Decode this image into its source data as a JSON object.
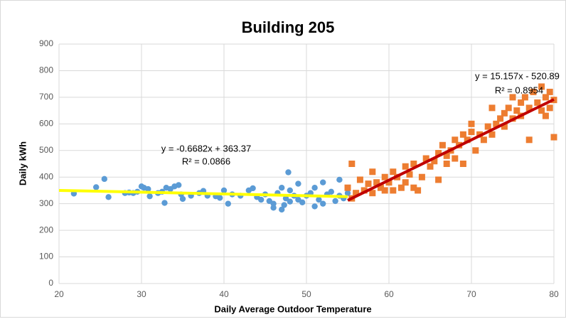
{
  "chart_data": {
    "type": "scatter",
    "title": "Building 205",
    "x_label": "Daily Average Outdoor Temperature",
    "y_label": "Daily kWh",
    "xlim": [
      20,
      80
    ],
    "xticks": [
      20,
      30,
      40,
      50,
      60,
      70,
      80
    ],
    "ylim": [
      0,
      900
    ],
    "yticks": [
      0,
      100,
      200,
      300,
      400,
      500,
      600,
      700,
      800,
      900
    ],
    "grid": true,
    "series": [
      {
        "color": "#5b9bd5",
        "marker": "circle",
        "x": [
          21.8,
          24.5,
          25.5,
          26,
          28,
          28.5,
          29,
          29.5,
          30,
          30.3,
          30.8,
          31,
          32,
          32.5,
          32.8,
          33,
          33.5,
          34,
          34.5,
          34.8,
          35,
          36,
          37,
          37.5,
          38,
          39,
          39.5,
          40,
          40.5,
          41,
          42,
          43,
          43.5,
          44,
          44.5,
          45,
          45.5,
          46,
          46,
          46.5,
          47,
          47,
          47.3,
          47.5,
          47.8,
          48,
          48,
          48.5,
          49,
          49,
          49.5,
          50,
          50.5,
          51,
          51,
          51.5,
          52,
          52,
          52.5,
          53,
          53.5,
          54,
          54,
          54.5,
          55
        ],
        "values": [
          338,
          362,
          393,
          325,
          340,
          342,
          340,
          345,
          365,
          360,
          355,
          328,
          340,
          345,
          303,
          360,
          355,
          365,
          370,
          335,
          318,
          330,
          340,
          348,
          330,
          328,
          322,
          350,
          300,
          335,
          330,
          350,
          358,
          325,
          315,
          335,
          310,
          300,
          285,
          340,
          360,
          278,
          295,
          320,
          418,
          308,
          350,
          330,
          375,
          315,
          305,
          330,
          340,
          290,
          360,
          315,
          380,
          300,
          335,
          345,
          310,
          390,
          330,
          320,
          340
        ]
      },
      {
        "color": "#ed7d31",
        "marker": "square",
        "x": [
          55,
          55.5,
          55.5,
          56,
          56.5,
          57,
          57.5,
          58,
          58,
          58.5,
          59,
          59.5,
          59.5,
          60,
          60.5,
          60.5,
          61,
          61.5,
          62,
          62,
          62.5,
          63,
          63,
          63.5,
          64,
          64.5,
          65,
          65.5,
          66,
          66,
          66.5,
          67,
          67,
          67.5,
          68,
          68,
          68.5,
          69,
          69,
          69.5,
          70,
          70,
          70.5,
          71,
          71.5,
          72,
          72.5,
          72.5,
          73,
          73.5,
          74,
          74,
          74.5,
          75,
          75,
          75.5,
          76,
          76,
          76.5,
          77,
          77,
          77.5,
          78,
          78.5,
          78.5,
          79,
          79,
          79.5,
          79.5,
          80,
          80
        ],
        "values": [
          360,
          450,
          320,
          340,
          390,
          350,
          375,
          420,
          340,
          380,
          360,
          400,
          350,
          380,
          420,
          350,
          400,
          360,
          440,
          380,
          410,
          360,
          450,
          350,
          400,
          470,
          440,
          460,
          490,
          390,
          520,
          450,
          480,
          500,
          540,
          470,
          520,
          560,
          450,
          540,
          570,
          600,
          500,
          560,
          540,
          590,
          660,
          560,
          600,
          620,
          640,
          590,
          660,
          700,
          620,
          650,
          680,
          630,
          700,
          660,
          540,
          720,
          680,
          740,
          650,
          700,
          630,
          720,
          660,
          550,
          690
        ]
      }
    ],
    "trendlines": [
      {
        "color": "#ffff00",
        "x": [
          20,
          55
        ],
        "values": [
          350,
          326.6
        ]
      },
      {
        "color": "#c00000",
        "x": [
          55,
          80
        ],
        "values": [
          312.7,
          691.7
        ]
      }
    ],
    "annotations": [
      "y = -0.6682x + 363.37",
      "R² = 0.0866",
      "y = 15.157x - 520.89",
      "R² = 0.8954"
    ]
  }
}
